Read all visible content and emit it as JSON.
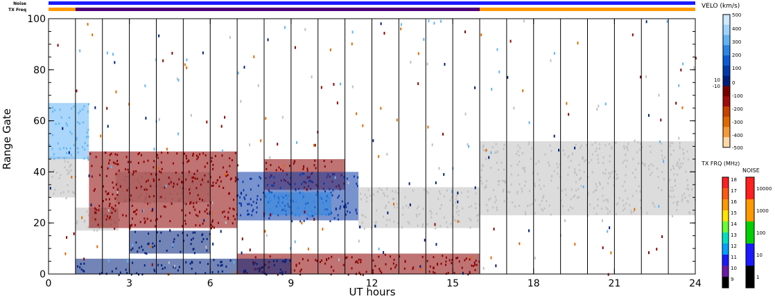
{
  "chart_data": {
    "type": "heatmap",
    "xlabel": "UT hours",
    "ylabel": "Range Gate",
    "xlim": [
      0,
      24
    ],
    "ylim": [
      0,
      100
    ],
    "x_ticks": [
      "0",
      "3",
      "6",
      "9",
      "12",
      "15",
      "18",
      "21",
      "24"
    ],
    "y_ticks": [
      "0",
      "20",
      "40",
      "60",
      "80",
      "100"
    ],
    "grid": "vertical lines every hour",
    "top_bars": {
      "noise_label": "Noise",
      "txfreq_label": "TX Freq",
      "noise_color": "#1a1aff",
      "txfreq_segments": [
        {
          "start": 0,
          "end": 1,
          "color": "#ff9900"
        },
        {
          "start": 1,
          "end": 16,
          "color": "#4d007a"
        },
        {
          "start": 16,
          "end": 24,
          "color": "#ff9900"
        }
      ]
    },
    "velocity_scale": {
      "title": "VELO (km/s)",
      "ticks": [
        "500",
        "400",
        "300",
        "200",
        "100",
        "10",
        "0",
        "-10",
        "-100",
        "-200",
        "-300",
        "-400",
        "-500"
      ],
      "colors_top_to_bottom": [
        "#cfe9ff",
        "#9fd3ff",
        "#62b5f5",
        "#2a87e6",
        "#0a5cd6",
        "#003aa8",
        "#001f7a",
        "#7a0000",
        "#a10b0b",
        "#c64200",
        "#e06a00",
        "#f59a3a",
        "#ffd7a8"
      ]
    },
    "txfreq_scale": {
      "title": "TX FRQ (MHz)",
      "ticks": [
        "18",
        "17",
        "16",
        "15",
        "14",
        "13",
        "12",
        "11",
        "10",
        "9"
      ],
      "colors_top_to_bottom": [
        "#ff2020",
        "#ff5a10",
        "#ff9900",
        "#ffe500",
        "#66ff33",
        "#00e0c0",
        "#00a0ff",
        "#1a1aff",
        "#6b1aa6",
        "#000000"
      ]
    },
    "noise_scale": {
      "title": "NOISE",
      "ticks": [
        "10000",
        "1000",
        "100",
        "10",
        "1"
      ],
      "colors_top_to_bottom": [
        "#ff2020",
        "#ff9900",
        "#00d000",
        "#1a1aff",
        "#000000"
      ]
    },
    "regions": [
      {
        "name": "ground scatter early",
        "x": [
          0,
          1.0
        ],
        "y": [
          30,
          46
        ],
        "color": "#c0c0c0"
      },
      {
        "name": "ground scatter 1-2h",
        "x": [
          1.0,
          2.6
        ],
        "y": [
          17,
          26
        ],
        "color": "#c0c0c0"
      },
      {
        "name": "ground scatter 3-6h",
        "x": [
          2.5,
          6.0
        ],
        "y": [
          28,
          40
        ],
        "color": "#c0c0c0"
      },
      {
        "name": "ground scatter 12-16h",
        "x": [
          11.5,
          16.0
        ],
        "y": [
          18,
          34
        ],
        "color": "#c0c0c0"
      },
      {
        "name": "ground scatter late",
        "x": [
          16.0,
          24.0
        ],
        "y": [
          23,
          52
        ],
        "color": "#c0c0c0"
      },
      {
        "name": "negative velocity 1.5-7h",
        "x": [
          1.5,
          7.0
        ],
        "y": [
          18,
          48
        ],
        "color": "#8b0000"
      },
      {
        "name": "negative velocity 8-11h",
        "x": [
          8.0,
          11.0
        ],
        "y": [
          33,
          45
        ],
        "color": "#8b0000"
      },
      {
        "name": "positive velocity patch 7-11.5h",
        "x": [
          7.0,
          11.5
        ],
        "y": [
          21,
          40
        ],
        "color": "#0b3aa8"
      },
      {
        "name": "positive velocity core 8-10.5h",
        "x": [
          8.0,
          10.5
        ],
        "y": [
          23,
          32
        ],
        "color": "#2a87e6"
      },
      {
        "name": "positive velocity 3-6h low band",
        "x": [
          3.0,
          6.0
        ],
        "y": [
          8,
          17
        ],
        "color": "#001f7a"
      },
      {
        "name": "light blue 0-1h high",
        "x": [
          0,
          1.5
        ],
        "y": [
          45,
          67
        ],
        "color": "#62b5f5"
      },
      {
        "name": "low-gate negative velocity",
        "x": [
          7.0,
          16.0
        ],
        "y": [
          0,
          8
        ],
        "color": "#8b0000"
      },
      {
        "name": "low-gate positive velocity",
        "x": [
          1.0,
          9.0
        ],
        "y": [
          0,
          6
        ],
        "color": "#001f7a"
      }
    ]
  }
}
